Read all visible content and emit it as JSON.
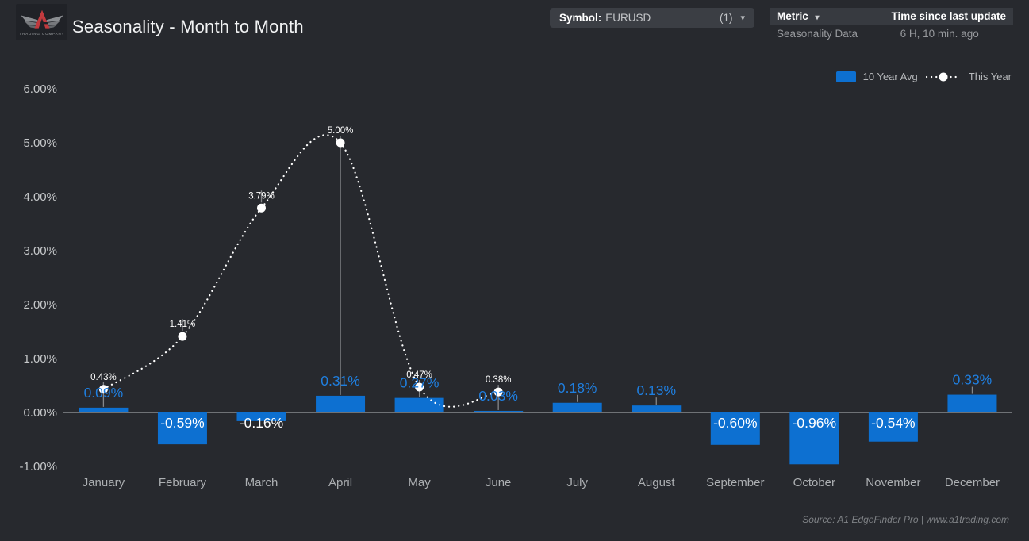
{
  "header": {
    "title": "Seasonality - Month to Month",
    "logo_text": "TRADING COMPANY"
  },
  "symbol_selector": {
    "label": "Symbol:",
    "value": "EURUSD",
    "count": "(1)",
    "caret": "▾"
  },
  "metric_table": {
    "col_metric": "Metric",
    "col_metric_caret": "▾",
    "col_time": "Time since last update",
    "rows": [
      {
        "metric": "Seasonality Data",
        "time": "6 H, 10 min. ago"
      }
    ]
  },
  "footer": {
    "source": "Source: A1 EdgeFinder Pro | www.a1trading.com"
  },
  "colors": {
    "background": "#27292e",
    "bar": "#0d70d1",
    "bar_label": "#1f7fe0",
    "negative_label": "#ffffff",
    "line": "#ffffff",
    "axis": "#6f7276",
    "callout": "#85878a",
    "ytick_text": "#c6c8ca",
    "xtick_text": "#acafb2"
  },
  "chart_data": {
    "type": "bar",
    "title": "Seasonality - Month to Month",
    "categories": [
      "January",
      "February",
      "March",
      "April",
      "May",
      "June",
      "July",
      "August",
      "September",
      "October",
      "November",
      "December"
    ],
    "series": [
      {
        "name": "10 Year Avg",
        "type": "bar",
        "values": [
          0.09,
          -0.59,
          -0.16,
          0.31,
          0.27,
          0.03,
          0.18,
          0.13,
          -0.6,
          -0.96,
          -0.54,
          0.33
        ]
      },
      {
        "name": "This Year",
        "type": "line",
        "values": [
          0.43,
          1.41,
          3.79,
          5.0,
          0.47,
          0.38,
          null,
          null,
          null,
          null,
          null,
          null
        ]
      }
    ],
    "value_unit": "%",
    "yticks": [
      -1,
      0,
      1,
      2,
      3,
      4,
      5,
      6
    ],
    "ylim": [
      -1,
      6
    ],
    "grid": false,
    "legend_position": "top-right"
  }
}
